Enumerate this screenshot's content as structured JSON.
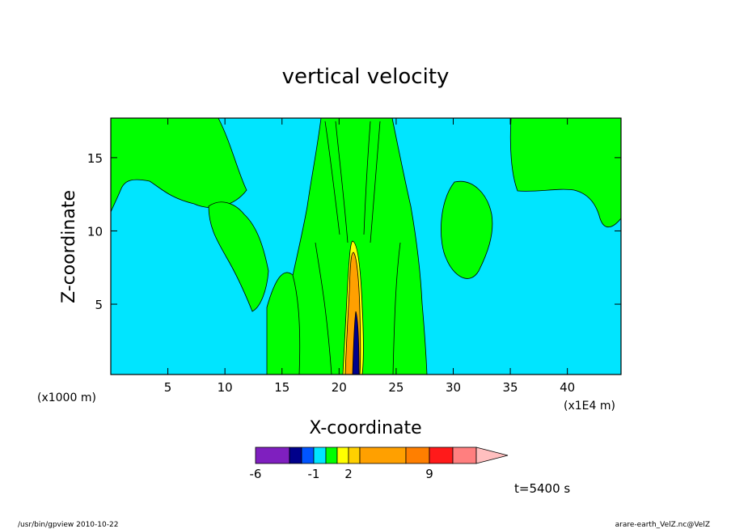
{
  "chart_data": {
    "type": "heatmap",
    "title": "vertical velocity",
    "xlabel": "X-coordinate",
    "ylabel": "Z-coordinate",
    "x_unit_left": "(x1000 m)",
    "x_unit_right": "(x1E4 m)",
    "xlim": [
      0,
      44.7
    ],
    "ylim": [
      0.2,
      17.7
    ],
    "x_ticks": [
      5,
      10,
      15,
      20,
      25,
      30,
      35,
      40
    ],
    "x_tick_labels": [
      "5",
      "10",
      "15",
      "20",
      "25",
      "30",
      "35",
      "40"
    ],
    "y_ticks": [
      5,
      10,
      15
    ],
    "y_tick_labels": [
      "5",
      "10",
      "15"
    ],
    "time_label": "t=5400 s",
    "colorbar": {
      "colors": [
        "#7f1fbf",
        "#00008b",
        "#0055ff",
        "#00e5ff",
        "#00ff00",
        "#ffff00",
        "#ffd000",
        "#ffa000",
        "#ff7f00",
        "#ff1a1a",
        "#ff7f7f",
        "#ffbfbf"
      ],
      "tick_labels": [
        "-6",
        "-1",
        "2",
        "9"
      ],
      "tick_values": [
        -6,
        -1,
        2,
        9
      ]
    },
    "background_level_color": "#00e5ff",
    "positive_level_color": "#00ff00",
    "core_color": "#ffa000"
  },
  "footer": {
    "left": "/usr/bin/gpview   2010-10-22",
    "right": "arare-earth_VelZ.nc@VelZ"
  }
}
